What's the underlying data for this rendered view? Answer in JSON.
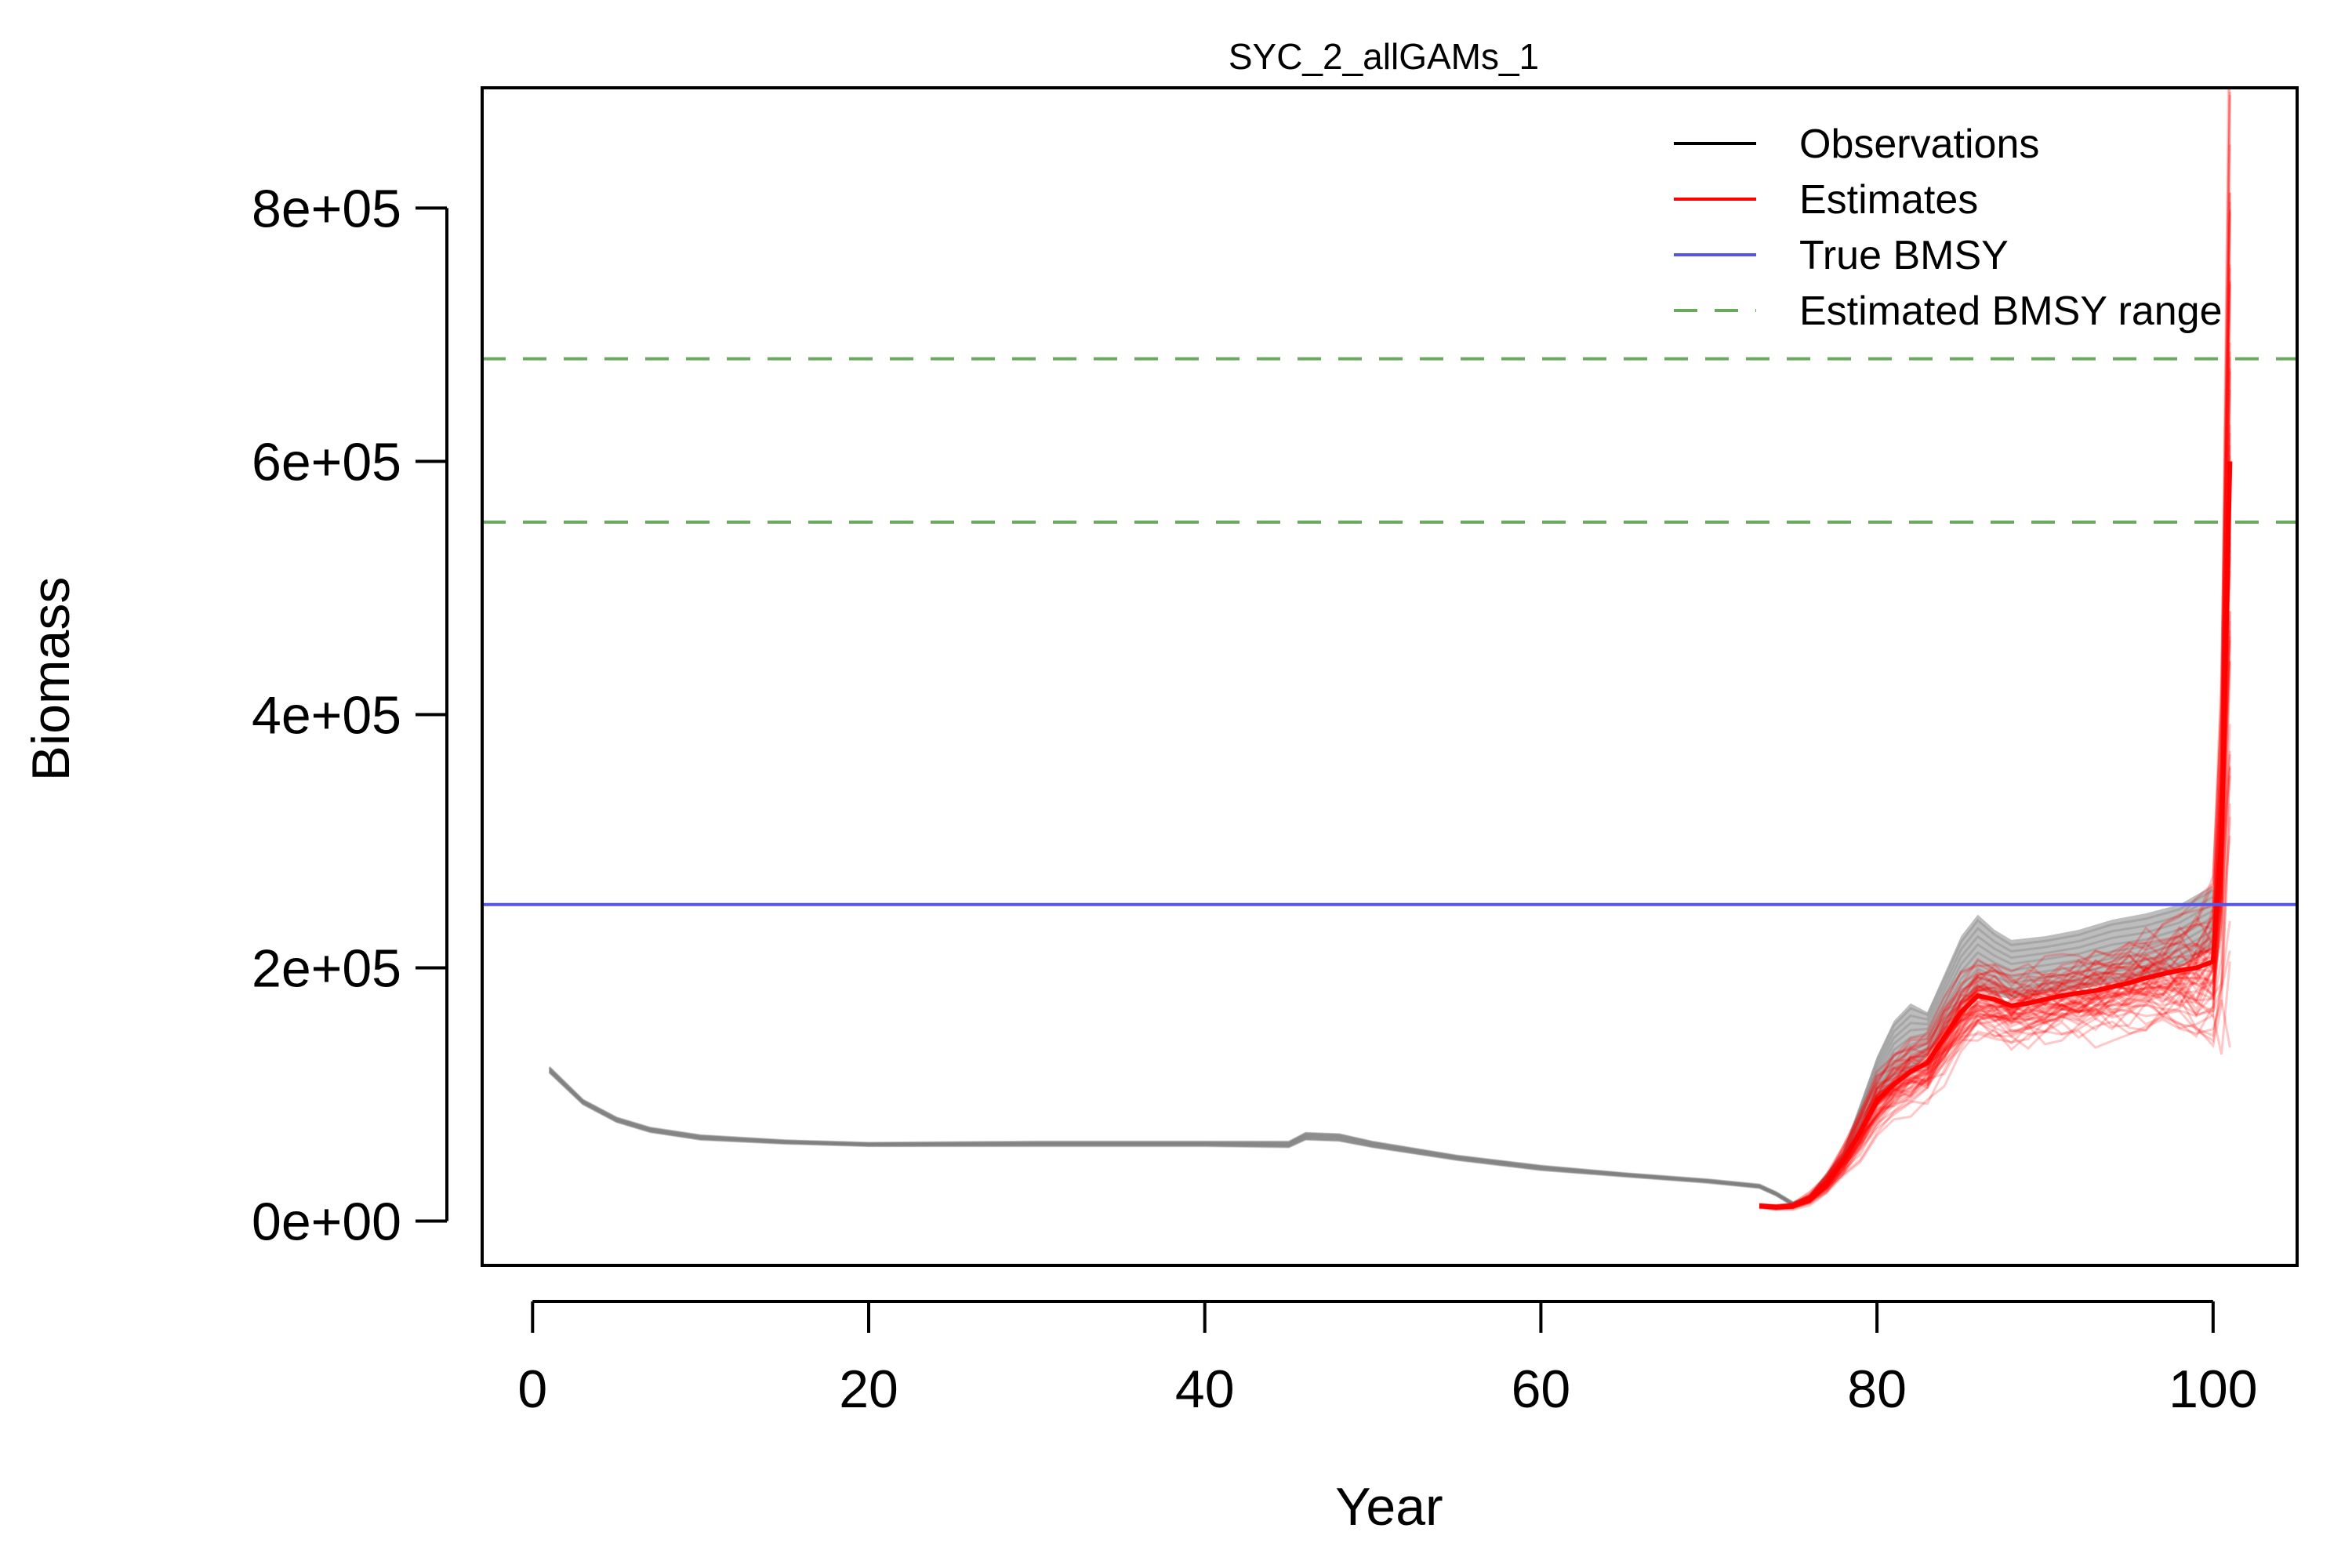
{
  "chart_data": {
    "type": "line",
    "title": "SYC_2_allGAMs_1",
    "xlabel": "Year",
    "ylabel": "Biomass",
    "xlim": [
      -3,
      105
    ],
    "ylim": [
      -35000,
      895000
    ],
    "xticks": [
      0,
      20,
      40,
      60,
      80,
      100
    ],
    "yticks": [
      0,
      200000,
      400000,
      600000,
      800000
    ],
    "ytick_labels": [
      "0e+00",
      "2e+05",
      "4e+05",
      "6e+05",
      "8e+05"
    ],
    "grid": false,
    "legend_position": "top-right",
    "legend": [
      {
        "label": "Observations",
        "color": "#000000",
        "style": "solid"
      },
      {
        "label": "Estimates",
        "color": "#ff0000",
        "style": "solid"
      },
      {
        "label": "True BMSY",
        "color": "#5555e8",
        "style": "solid"
      },
      {
        "label": "Estimated BMSY range",
        "color": "#6aaa5e",
        "style": "dashed"
      }
    ],
    "reference_lines": {
      "true_bmsy": 250000,
      "estimated_bmsy_range": [
        552000,
        681000
      ]
    },
    "observations_band": {
      "x": [
        1,
        3,
        5,
        7,
        10,
        15,
        20,
        30,
        40,
        45,
        46,
        48,
        50,
        55,
        60,
        65,
        70,
        73,
        74,
        75,
        76,
        78,
        80,
        81,
        82,
        83,
        84,
        85,
        86,
        87,
        88,
        90,
        92,
        94,
        96,
        98,
        100
      ],
      "lower": [
        117000,
        92000,
        78000,
        70000,
        64000,
        61000,
        59000,
        59000,
        59000,
        58000,
        64000,
        63000,
        58000,
        48000,
        40000,
        35000,
        30000,
        26000,
        20000,
        12000,
        16000,
        45000,
        95000,
        112000,
        118000,
        130000,
        150000,
        170000,
        182000,
        178000,
        175000,
        180000,
        183000,
        188000,
        192000,
        200000,
        215000
      ],
      "upper": [
        122000,
        96000,
        82000,
        74000,
        68000,
        64000,
        62000,
        63000,
        63000,
        63000,
        70000,
        69000,
        63000,
        52000,
        44000,
        38000,
        33000,
        29000,
        23000,
        15000,
        20000,
        55000,
        130000,
        158000,
        172000,
        165000,
        195000,
        225000,
        242000,
        230000,
        222000,
        225000,
        230000,
        238000,
        243000,
        250000,
        265000
      ]
    },
    "observations_mid": {
      "x": [
        1,
        3,
        5,
        7,
        10,
        15,
        20,
        30,
        40,
        45,
        46,
        48,
        50,
        55,
        60,
        65,
        70,
        73,
        74,
        75,
        76,
        78,
        80,
        81,
        82,
        83,
        84,
        85,
        86,
        87,
        88,
        90,
        92,
        94,
        96,
        98,
        100
      ],
      "values": [
        119500,
        94000,
        80000,
        72000,
        66000,
        62500,
        60500,
        61000,
        61000,
        60500,
        67000,
        66000,
        60500,
        50000,
        42000,
        36500,
        31500,
        27500,
        21500,
        13500,
        18000,
        50000,
        112000,
        135000,
        145000,
        148000,
        172000,
        197000,
        212000,
        204000,
        198000,
        202000,
        206000,
        213000,
        217000,
        225000,
        240000
      ]
    },
    "estimates_mean": {
      "x": [
        73,
        74,
        75,
        76,
        77,
        78,
        79,
        80,
        81,
        82,
        83,
        84,
        85,
        86,
        87,
        88,
        89,
        90,
        91,
        92,
        93,
        94,
        95,
        96,
        97,
        98,
        99,
        100,
        100.5,
        101
      ],
      "values": [
        12000,
        11000,
        12000,
        18000,
        30000,
        48000,
        70000,
        95000,
        108000,
        118000,
        125000,
        145000,
        165000,
        178000,
        175000,
        170000,
        172000,
        175000,
        178000,
        180000,
        182000,
        185000,
        188000,
        192000,
        195000,
        198000,
        200000,
        205000,
        300000,
        600000
      ]
    },
    "estimates_spread": {
      "x": [
        73,
        74,
        75,
        76,
        77,
        78,
        79,
        80,
        81,
        82,
        83,
        84,
        85,
        86,
        87,
        88,
        89,
        90,
        91,
        92,
        93,
        94,
        95,
        96,
        97,
        98,
        99,
        100,
        100.5,
        101
      ],
      "values": [
        1000,
        1000,
        1500,
        3000,
        5000,
        8000,
        12000,
        15000,
        17000,
        18000,
        18000,
        19000,
        20000,
        20000,
        20000,
        20000,
        20000,
        20000,
        21000,
        21000,
        22000,
        22000,
        23000,
        24000,
        26000,
        30000,
        38000,
        45000,
        100000,
        250000
      ]
    },
    "estimates_trajectory_count": 60
  }
}
